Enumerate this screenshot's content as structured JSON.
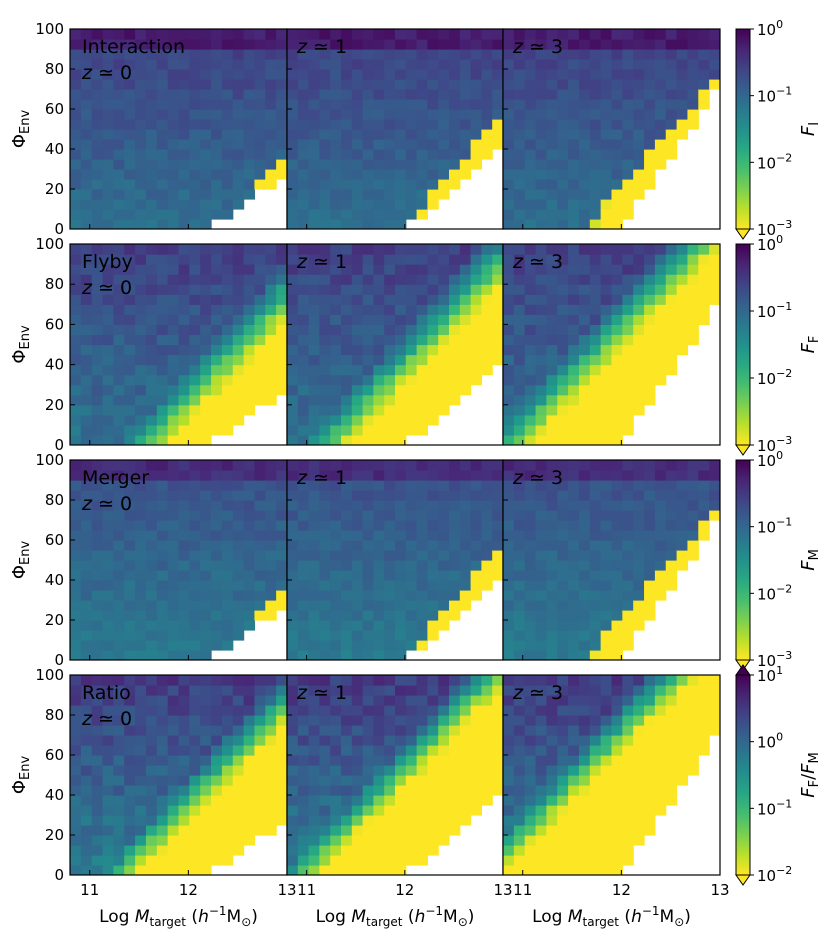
{
  "chart_data": {
    "type": "heatmap",
    "title": "",
    "xlabel": {
      "prefix": "Log ",
      "main": "M",
      "sub": "target",
      "unit_open": " (h",
      "unit_sup": "−1",
      "unit_rest": "M",
      "unit_sun": "⊙",
      "unit_close": ")"
    },
    "ylabel": {
      "main": "Φ",
      "sub": "Env"
    },
    "xlim": [
      10.8,
      13
    ],
    "ylim": [
      0,
      100
    ],
    "x_ticks": [
      11,
      12,
      13
    ],
    "y_ticks": [
      0,
      20,
      40,
      60,
      80,
      100
    ],
    "redshift_labels": [
      "z ≃ 0",
      "z ≃ 1",
      "z ≃ 3"
    ],
    "rows": [
      {
        "name": "Interaction",
        "colorbar_label": {
          "main": "F",
          "sub": "I"
        },
        "clim": [
          0.001,
          1
        ],
        "colorbar_ticks": [
          {
            "base": "10",
            "exp": "0"
          },
          {
            "base": "10",
            "exp": "−1"
          },
          {
            "base": "10",
            "exp": "−2"
          },
          {
            "base": "10",
            "exp": "−3"
          }
        ],
        "colorbar_extend": "min",
        "typical_value": 0.1
      },
      {
        "name": "Flyby",
        "colorbar_label": {
          "main": "F",
          "sub": "F"
        },
        "clim": [
          0.001,
          1
        ],
        "colorbar_ticks": [
          {
            "base": "10",
            "exp": "0"
          },
          {
            "base": "10",
            "exp": "−1"
          },
          {
            "base": "10",
            "exp": "−2"
          },
          {
            "base": "10",
            "exp": "−3"
          }
        ],
        "colorbar_extend": "min",
        "typical_value": 0.05
      },
      {
        "name": "Merger",
        "colorbar_label": {
          "main": "F",
          "sub": "M"
        },
        "clim": [
          0.001,
          1
        ],
        "colorbar_ticks": [
          {
            "base": "10",
            "exp": "0"
          },
          {
            "base": "10",
            "exp": "−1"
          },
          {
            "base": "10",
            "exp": "−2"
          },
          {
            "base": "10",
            "exp": "−3"
          }
        ],
        "colorbar_extend": "min",
        "typical_value": 0.08
      },
      {
        "name": "Ratio",
        "colorbar_label": {
          "main": "F",
          "sub": "F",
          "slash": "/",
          "main2": "F",
          "sub2": "M"
        },
        "clim": [
          0.01,
          10
        ],
        "colorbar_ticks": [
          {
            "base": "10",
            "exp": "1"
          },
          {
            "base": "10",
            "exp": "0"
          },
          {
            "base": "10",
            "exp": "−1"
          },
          {
            "base": "10",
            "exp": "−2"
          }
        ],
        "colorbar_extend": "both",
        "typical_value": 0.5
      }
    ],
    "panel_columns": [
      {
        "redshift": "z ≃ 0",
        "x_start": 10.8,
        "bin_width": 0.11,
        "bins": 20
      },
      {
        "redshift": "z ≃ 1",
        "x_start": 10.8,
        "bin_width": 0.11,
        "bins": 20
      },
      {
        "redshift": "z ≃ 3",
        "x_start": 10.8,
        "bin_width": 0.11,
        "bins": 20
      }
    ],
    "y_bin_width": 5,
    "empty_region": "white triangle at high mass / low environment density (no data)",
    "high_mass_low_env_value": "below colorbar minimum (yellow)"
  }
}
